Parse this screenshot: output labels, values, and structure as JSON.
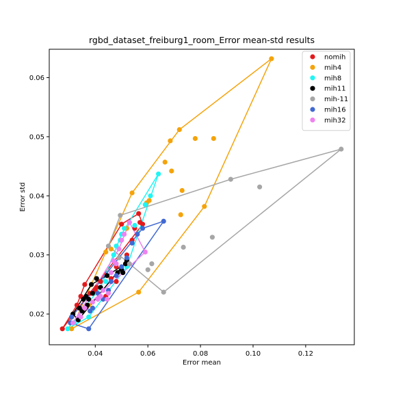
{
  "chart_data": {
    "type": "scatter",
    "title": "rgbd_dataset_freiburg1_room_Error mean-std results",
    "xlabel": "Error mean",
    "ylabel": "Error std",
    "xlim": [
      0.0225,
      0.1385
    ],
    "ylim": [
      0.0148,
      0.0648
    ],
    "xticks": [
      0.04,
      0.06,
      0.08,
      0.1,
      0.12
    ],
    "xtick_labels": [
      "0.04",
      "0.06",
      "0.08",
      "0.10",
      "0.12"
    ],
    "yticks": [
      0.02,
      0.03,
      0.04,
      0.05,
      0.06
    ],
    "ytick_labels": [
      "0.02",
      "0.03",
      "0.04",
      "0.05",
      "0.06"
    ],
    "grid": false,
    "legend_position": "top-right",
    "hull_outlines": true,
    "series": [
      {
        "name": "nomih",
        "color": "#e31a1c",
        "points": [
          [
            0.0275,
            0.0175
          ],
          [
            0.031,
            0.0195
          ],
          [
            0.033,
            0.0215
          ],
          [
            0.0345,
            0.023
          ],
          [
            0.036,
            0.025
          ],
          [
            0.038,
            0.0235
          ],
          [
            0.04,
            0.024
          ],
          [
            0.042,
            0.0255
          ],
          [
            0.044,
            0.023
          ],
          [
            0.046,
            0.026
          ],
          [
            0.048,
            0.028
          ],
          [
            0.05,
            0.0352
          ],
          [
            0.052,
            0.03
          ],
          [
            0.054,
            0.0325
          ],
          [
            0.055,
            0.0345
          ],
          [
            0.0565,
            0.037
          ],
          [
            0.057,
            0.0355
          ],
          [
            0.058,
            0.0352
          ],
          [
            0.0405,
            0.0245
          ],
          [
            0.048,
            0.0255
          ]
        ],
        "hull": [
          [
            0.0275,
            0.0175
          ],
          [
            0.058,
            0.0352
          ],
          [
            0.0565,
            0.037
          ],
          [
            0.05,
            0.0352
          ],
          [
            0.036,
            0.025
          ],
          [
            0.033,
            0.0215
          ],
          [
            0.0275,
            0.0175
          ]
        ]
      },
      {
        "name": "mih4",
        "color": "#f5a30a",
        "points": [
          [
            0.031,
            0.0175
          ],
          [
            0.0375,
            0.0215
          ],
          [
            0.0565,
            0.0237
          ],
          [
            0.044,
            0.0305
          ],
          [
            0.046,
            0.031
          ],
          [
            0.052,
            0.0345
          ],
          [
            0.054,
            0.0405
          ],
          [
            0.0595,
            0.0388
          ],
          [
            0.0605,
            0.0392
          ],
          [
            0.0665,
            0.0457
          ],
          [
            0.0685,
            0.0493
          ],
          [
            0.069,
            0.0442
          ],
          [
            0.072,
            0.0512
          ],
          [
            0.0725,
            0.0368
          ],
          [
            0.073,
            0.0409
          ],
          [
            0.078,
            0.0497
          ],
          [
            0.0815,
            0.0382
          ],
          [
            0.085,
            0.0497
          ],
          [
            0.107,
            0.0632
          ]
        ],
        "hull": [
          [
            0.031,
            0.0175
          ],
          [
            0.0565,
            0.0237
          ],
          [
            0.0815,
            0.0382
          ],
          [
            0.107,
            0.0632
          ],
          [
            0.072,
            0.0512
          ],
          [
            0.054,
            0.0405
          ],
          [
            0.044,
            0.0305
          ],
          [
            0.031,
            0.0175
          ]
        ]
      },
      {
        "name": "mih8",
        "color": "#1ff5f5",
        "points": [
          [
            0.0295,
            0.0175
          ],
          [
            0.032,
            0.0185
          ],
          [
            0.0375,
            0.0195
          ],
          [
            0.042,
            0.0245
          ],
          [
            0.044,
            0.0255
          ],
          [
            0.047,
            0.03
          ],
          [
            0.048,
            0.0315
          ],
          [
            0.0495,
            0.0325
          ],
          [
            0.05,
            0.0335
          ],
          [
            0.051,
            0.0345
          ],
          [
            0.052,
            0.028
          ],
          [
            0.053,
            0.0355
          ],
          [
            0.055,
            0.035
          ],
          [
            0.059,
            0.0385
          ],
          [
            0.061,
            0.04
          ],
          [
            0.064,
            0.0437
          ]
        ],
        "hull": [
          [
            0.0295,
            0.0175
          ],
          [
            0.0375,
            0.0195
          ],
          [
            0.052,
            0.028
          ],
          [
            0.064,
            0.0437
          ],
          [
            0.05,
            0.0335
          ],
          [
            0.042,
            0.0245
          ],
          [
            0.0295,
            0.0175
          ]
        ]
      },
      {
        "name": "mih11",
        "color": "#000000",
        "points": [
          [
            0.0315,
            0.02
          ],
          [
            0.0335,
            0.019
          ],
          [
            0.034,
            0.021
          ],
          [
            0.035,
            0.0205
          ],
          [
            0.0355,
            0.0225
          ],
          [
            0.0365,
            0.023
          ],
          [
            0.037,
            0.0215
          ],
          [
            0.0375,
            0.0225
          ],
          [
            0.0385,
            0.025
          ],
          [
            0.039,
            0.0235
          ],
          [
            0.0405,
            0.026
          ],
          [
            0.042,
            0.0245
          ],
          [
            0.0445,
            0.0265
          ],
          [
            0.0485,
            0.027
          ],
          [
            0.05,
            0.0275
          ],
          [
            0.0515,
            0.0285
          ],
          [
            0.052,
            0.029
          ],
          [
            0.0505,
            0.027
          ]
        ],
        "hull": [
          [
            0.0315,
            0.02
          ],
          [
            0.0335,
            0.019
          ],
          [
            0.052,
            0.029
          ],
          [
            0.0515,
            0.0285
          ],
          [
            0.0445,
            0.0265
          ],
          [
            0.0385,
            0.025
          ],
          [
            0.0315,
            0.02
          ]
        ]
      },
      {
        "name": "mih-11",
        "color": "#a6a6a6",
        "points": [
          [
            0.045,
            0.0315
          ],
          [
            0.049,
            0.0295
          ],
          [
            0.0495,
            0.0367
          ],
          [
            0.053,
            0.0285
          ],
          [
            0.06,
            0.0275
          ],
          [
            0.0615,
            0.0285
          ],
          [
            0.066,
            0.0237
          ],
          [
            0.0735,
            0.0313
          ],
          [
            0.0845,
            0.033
          ],
          [
            0.0915,
            0.0428
          ],
          [
            0.1025,
            0.0415
          ],
          [
            0.1335,
            0.0479
          ]
        ],
        "hull": [
          [
            0.045,
            0.0315
          ],
          [
            0.053,
            0.0285
          ],
          [
            0.066,
            0.0237
          ],
          [
            0.1335,
            0.0479
          ],
          [
            0.0915,
            0.0428
          ],
          [
            0.0495,
            0.0367
          ],
          [
            0.045,
            0.0315
          ]
        ]
      },
      {
        "name": "mih16",
        "color": "#4169d2",
        "points": [
          [
            0.0305,
            0.0185
          ],
          [
            0.031,
            0.0195
          ],
          [
            0.0375,
            0.0175
          ],
          [
            0.038,
            0.0205
          ],
          [
            0.039,
            0.021
          ],
          [
            0.041,
            0.0235
          ],
          [
            0.043,
            0.0225
          ],
          [
            0.045,
            0.024
          ],
          [
            0.046,
            0.0255
          ],
          [
            0.048,
            0.0265
          ],
          [
            0.05,
            0.028
          ],
          [
            0.052,
            0.0295
          ],
          [
            0.054,
            0.032
          ],
          [
            0.056,
            0.0335
          ],
          [
            0.058,
            0.0345
          ],
          [
            0.066,
            0.0357
          ]
        ],
        "hull": [
          [
            0.0305,
            0.0185
          ],
          [
            0.0375,
            0.0175
          ],
          [
            0.066,
            0.0357
          ],
          [
            0.058,
            0.0345
          ],
          [
            0.031,
            0.0195
          ],
          [
            0.0305,
            0.0185
          ]
        ]
      },
      {
        "name": "mih32",
        "color": "#ee82ee",
        "points": [
          [
            0.0315,
            0.0185
          ],
          [
            0.0345,
            0.0195
          ],
          [
            0.036,
            0.021
          ],
          [
            0.039,
            0.022
          ],
          [
            0.041,
            0.0225
          ],
          [
            0.042,
            0.023
          ],
          [
            0.043,
            0.024
          ],
          [
            0.0445,
            0.0225
          ],
          [
            0.045,
            0.0235
          ],
          [
            0.046,
            0.027
          ],
          [
            0.047,
            0.029
          ],
          [
            0.048,
            0.0285
          ],
          [
            0.049,
            0.031
          ],
          [
            0.05,
            0.0325
          ],
          [
            0.051,
            0.0335
          ],
          [
            0.053,
            0.0355
          ],
          [
            0.059,
            0.0305
          ]
        ],
        "hull": [
          [
            0.0315,
            0.0185
          ],
          [
            0.036,
            0.021
          ],
          [
            0.059,
            0.0305
          ],
          [
            0.053,
            0.0355
          ],
          [
            0.049,
            0.031
          ],
          [
            0.0315,
            0.0185
          ]
        ]
      }
    ]
  }
}
